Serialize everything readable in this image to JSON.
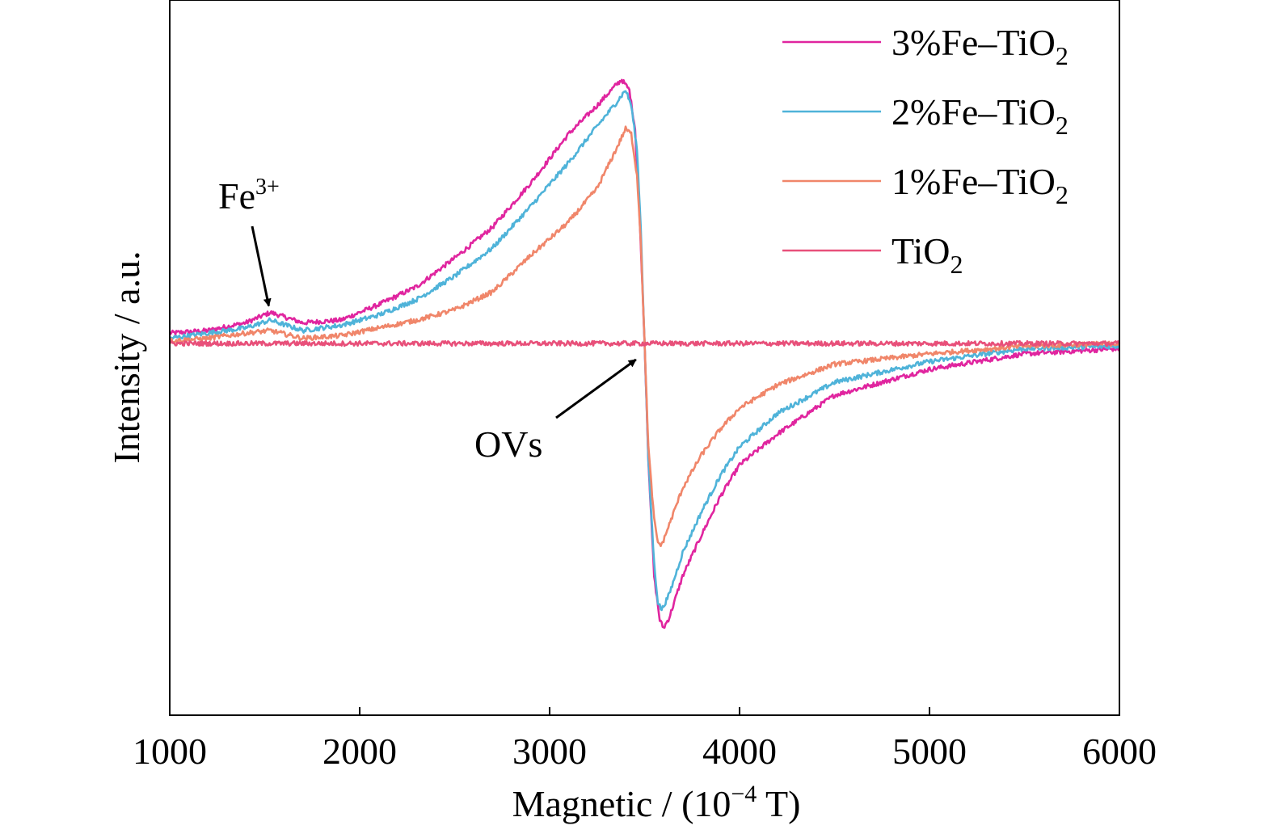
{
  "chart_data": {
    "type": "line",
    "title": "",
    "xlabel": {
      "main": "Magnetic / (10",
      "sup": "−4",
      "tail": " T)"
    },
    "ylabel": "Intensity / a.u.",
    "xlim": [
      1000,
      6000
    ],
    "ylim": [
      -1.2,
      1.2
    ],
    "x_ticks": [
      1000,
      2000,
      3000,
      4000,
      5000,
      6000
    ],
    "grid": false,
    "legend_position": "top-right",
    "series": [
      {
        "key": "fe3",
        "name": {
          "main": "3%Fe–TiO",
          "sub": "2"
        },
        "color": "#e0259f",
        "points": [
          [
            1000,
            0.04
          ],
          [
            1200,
            0.05
          ],
          [
            1400,
            0.08
          ],
          [
            1530,
            0.12
          ],
          [
            1700,
            0.08
          ],
          [
            1900,
            0.09
          ],
          [
            2100,
            0.15
          ],
          [
            2300,
            0.22
          ],
          [
            2500,
            0.33
          ],
          [
            2700,
            0.45
          ],
          [
            2900,
            0.62
          ],
          [
            3100,
            0.81
          ],
          [
            3250,
            0.92
          ],
          [
            3350,
            1.0
          ],
          [
            3380,
            1.02
          ],
          [
            3420,
            0.98
          ],
          [
            3450,
            0.83
          ],
          [
            3470,
            0.55
          ],
          [
            3490,
            0.2
          ],
          [
            3500,
            0.0
          ],
          [
            3520,
            -0.45
          ],
          [
            3550,
            -0.9
          ],
          [
            3580,
            -1.07
          ],
          [
            3600,
            -1.1
          ],
          [
            3630,
            -1.06
          ],
          [
            3700,
            -0.9
          ],
          [
            3800,
            -0.74
          ],
          [
            3900,
            -0.59
          ],
          [
            4000,
            -0.47
          ],
          [
            4200,
            -0.35
          ],
          [
            4500,
            -0.2
          ],
          [
            5000,
            -0.1
          ],
          [
            5500,
            -0.04
          ],
          [
            6000,
            -0.02
          ]
        ]
      },
      {
        "key": "fe2",
        "name": {
          "main": "2%Fe–TiO",
          "sub": "2"
        },
        "color": "#4fb3d9",
        "points": [
          [
            1000,
            0.02
          ],
          [
            1200,
            0.04
          ],
          [
            1400,
            0.06
          ],
          [
            1530,
            0.09
          ],
          [
            1700,
            0.05
          ],
          [
            1900,
            0.07
          ],
          [
            2100,
            0.11
          ],
          [
            2300,
            0.17
          ],
          [
            2500,
            0.26
          ],
          [
            2700,
            0.37
          ],
          [
            2900,
            0.53
          ],
          [
            3100,
            0.7
          ],
          [
            3250,
            0.84
          ],
          [
            3350,
            0.93
          ],
          [
            3400,
            0.98
          ],
          [
            3430,
            0.92
          ],
          [
            3460,
            0.75
          ],
          [
            3480,
            0.45
          ],
          [
            3500,
            0.0
          ],
          [
            3520,
            -0.45
          ],
          [
            3550,
            -0.85
          ],
          [
            3570,
            -1.0
          ],
          [
            3590,
            -1.03
          ],
          [
            3630,
            -0.97
          ],
          [
            3700,
            -0.81
          ],
          [
            3800,
            -0.65
          ],
          [
            3900,
            -0.51
          ],
          [
            4000,
            -0.4
          ],
          [
            4200,
            -0.27
          ],
          [
            4500,
            -0.15
          ],
          [
            5000,
            -0.07
          ],
          [
            5500,
            -0.02
          ],
          [
            6000,
            -0.01
          ]
        ]
      },
      {
        "key": "fe1",
        "name": {
          "main": "1%Fe–TiO",
          "sub": "2"
        },
        "color": "#f0866a",
        "points": [
          [
            1000,
            0.01
          ],
          [
            1200,
            0.02
          ],
          [
            1400,
            0.04
          ],
          [
            1530,
            0.05
          ],
          [
            1700,
            0.02
          ],
          [
            1900,
            0.03
          ],
          [
            2100,
            0.06
          ],
          [
            2300,
            0.09
          ],
          [
            2500,
            0.13
          ],
          [
            2700,
            0.2
          ],
          [
            2900,
            0.34
          ],
          [
            3100,
            0.47
          ],
          [
            3250,
            0.6
          ],
          [
            3350,
            0.75
          ],
          [
            3400,
            0.83
          ],
          [
            3430,
            0.81
          ],
          [
            3460,
            0.65
          ],
          [
            3480,
            0.4
          ],
          [
            3500,
            0.0
          ],
          [
            3520,
            -0.4
          ],
          [
            3550,
            -0.68
          ],
          [
            3570,
            -0.77
          ],
          [
            3590,
            -0.78
          ],
          [
            3630,
            -0.7
          ],
          [
            3700,
            -0.56
          ],
          [
            3800,
            -0.43
          ],
          [
            3900,
            -0.33
          ],
          [
            4000,
            -0.25
          ],
          [
            4200,
            -0.16
          ],
          [
            4500,
            -0.08
          ],
          [
            5000,
            -0.04
          ],
          [
            5500,
            -0.01
          ],
          [
            6000,
            0.0
          ]
        ]
      },
      {
        "key": "tio2",
        "name": {
          "main": "TiO",
          "sub": "2"
        },
        "color": "#e8507a",
        "points": [
          [
            1000,
            0.0
          ],
          [
            1500,
            0.0
          ],
          [
            2000,
            0.0
          ],
          [
            2500,
            0.0
          ],
          [
            3000,
            0.0
          ],
          [
            3500,
            0.0
          ],
          [
            4000,
            0.0
          ],
          [
            4500,
            0.0
          ],
          [
            5000,
            0.0
          ],
          [
            5500,
            0.0
          ],
          [
            6000,
            0.0
          ]
        ]
      }
    ],
    "annotations": [
      {
        "key": "fe_peak",
        "label": {
          "main": "Fe",
          "sup": "3+"
        },
        "target": [
          1530,
          0.12
        ]
      },
      {
        "key": "ovs",
        "label": {
          "main": "OVs"
        },
        "target": [
          3480,
          0.0
        ]
      }
    ]
  }
}
